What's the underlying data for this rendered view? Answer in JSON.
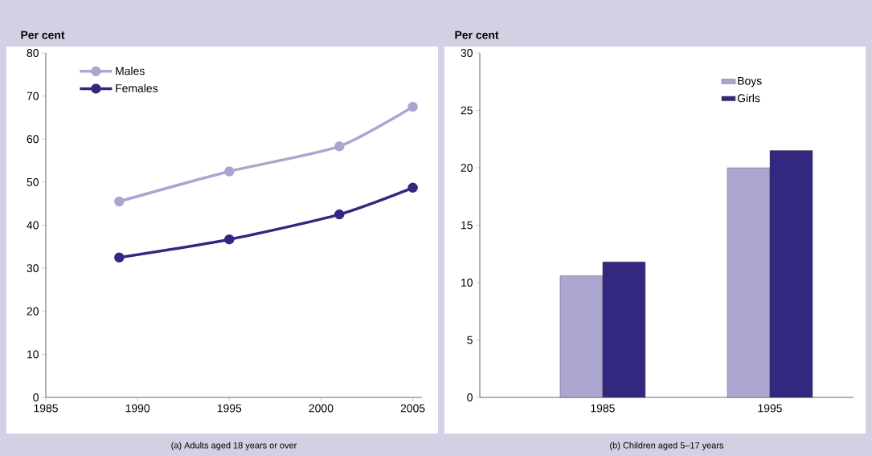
{
  "chart_data": [
    {
      "type": "line",
      "ylabel": "Per cent",
      "xlabel": "(a) Adults aged 18 years or over",
      "x": [
        1989,
        1995,
        2001,
        2005
      ],
      "series": [
        {
          "name": "Males",
          "color": "#aba6cf",
          "values": [
            45.5,
            52.5,
            58.3,
            67.5
          ]
        },
        {
          "name": "Females",
          "color": "#32287f",
          "values": [
            32.5,
            36.7,
            42.5,
            48.7
          ]
        }
      ],
      "xlim": [
        1985,
        2005.5
      ],
      "ylim": [
        0,
        80
      ],
      "xticks": [
        1985,
        1990,
        1995,
        2000,
        2005
      ],
      "yticks": [
        0,
        10,
        20,
        30,
        40,
        50,
        60,
        70,
        80
      ],
      "marker": "circle",
      "legend": "top left"
    },
    {
      "type": "bar",
      "ylabel": "Per cent",
      "xlabel": "(b) Children aged 5–17 years",
      "categories": [
        "1985",
        "1995"
      ],
      "series": [
        {
          "name": "Boys",
          "color": "#aba6cf",
          "values": [
            10.6,
            20.0
          ]
        },
        {
          "name": "Girls",
          "color": "#32287f",
          "values": [
            11.8,
            21.5
          ]
        }
      ],
      "ylim": [
        0,
        30
      ],
      "yticks": [
        0,
        5,
        10,
        15,
        20,
        25,
        30
      ],
      "legend": "top right"
    }
  ]
}
